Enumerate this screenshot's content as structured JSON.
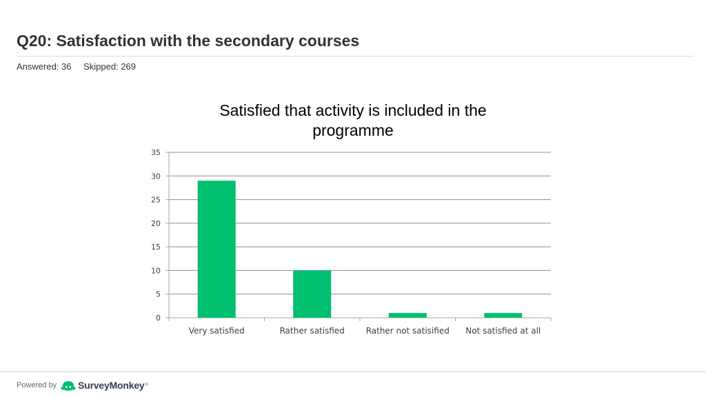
{
  "header": {
    "title": "Q20: Satisfaction with the secondary courses",
    "answered": "Answered: 36",
    "skipped": "Skipped: 269"
  },
  "footer": {
    "powered_by": "Powered by",
    "brand": "SurveyMonkey",
    "brand_mark": "®"
  },
  "colors": {
    "bar": "#00bf6f",
    "gridline": "#8c8c8c",
    "axis": "#a6a6a6"
  },
  "chart_data": {
    "type": "bar",
    "title_lines": [
      "Satisfied that activity is included in the",
      "programme"
    ],
    "categories": [
      "Very satisfied",
      "Rather satisfied",
      "Rather not satisified",
      "Not satisfied at all"
    ],
    "values": [
      29,
      10,
      1,
      1
    ],
    "ylim": [
      0,
      35
    ],
    "yticks": [
      0,
      5,
      10,
      15,
      20,
      25,
      30,
      35
    ],
    "grid": true,
    "legend": "none"
  }
}
